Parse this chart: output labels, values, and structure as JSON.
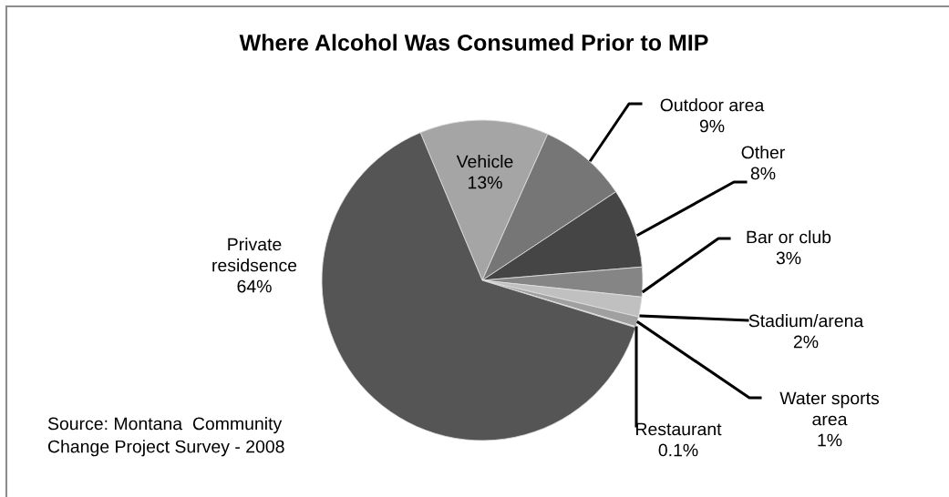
{
  "chart_data": {
    "type": "pie",
    "title": "Where Alcohol Was Consumed Prior to MIP",
    "categories": [
      "Vehicle",
      "Outdoor area",
      "Other",
      "Bar or club",
      "Stadium/arena",
      "Water sports\narea",
      "Restaurant",
      "Private\nresidsence"
    ],
    "values": [
      13,
      9,
      8,
      3,
      2,
      1,
      0.1,
      64
    ],
    "colors": [
      "#a5a5a5",
      "#767676",
      "#454545",
      "#858585",
      "#c0c0c0",
      "#a0a0a0",
      "#d0d0d0",
      "#555555"
    ],
    "value_labels": [
      "13%",
      "9%",
      "8%",
      "3%",
      "2%",
      "1%",
      "0.1%",
      "64%"
    ],
    "legend": false,
    "annotations": [
      "Source: Montana  Community\nChange Project Survey - 2008"
    ]
  }
}
